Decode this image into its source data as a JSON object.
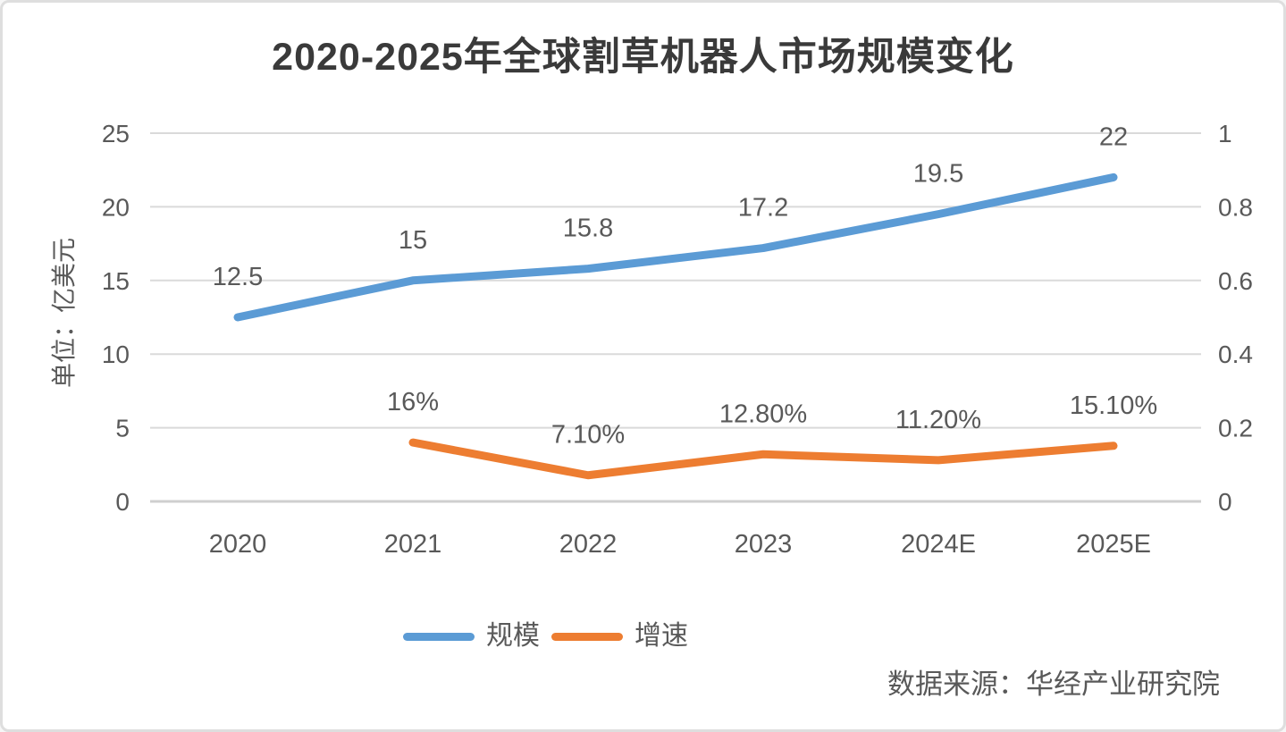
{
  "chart_data": {
    "type": "line",
    "title": "2020-2025年全球割草机器人市场规模变化",
    "categories": [
      "2020",
      "2021",
      "2022",
      "2023",
      "2024E",
      "2025E"
    ],
    "series": [
      {
        "name": "规模",
        "axis": "left",
        "color": "#5B9BD5",
        "values": [
          12.5,
          15,
          15.8,
          17.2,
          19.5,
          22
        ],
        "labels": [
          "12.5",
          "15",
          "15.8",
          "17.2",
          "19.5",
          "22"
        ]
      },
      {
        "name": "增速",
        "axis": "right",
        "color": "#ED7D31",
        "values": [
          null,
          0.16,
          0.071,
          0.128,
          0.112,
          0.151
        ],
        "labels": [
          null,
          "16%",
          "7.10%",
          "12.80%",
          "11.20%",
          "15.10%"
        ]
      }
    ],
    "left_axis": {
      "title": "单位：亿美元",
      "min": 0,
      "max": 25,
      "ticks": [
        "0",
        "5",
        "10",
        "15",
        "20",
        "25"
      ]
    },
    "right_axis": {
      "min": 0,
      "max": 1,
      "ticks": [
        "0",
        "0.2",
        "0.4",
        "0.6",
        "0.8",
        "1"
      ]
    },
    "grid": true,
    "legend_position": "bottom",
    "source": "数据来源：华经产业研究院"
  },
  "colors": {
    "text": "#595959",
    "title": "#3a3a3a",
    "gridline": "#dadada",
    "baseline": "#cfcfcf"
  }
}
